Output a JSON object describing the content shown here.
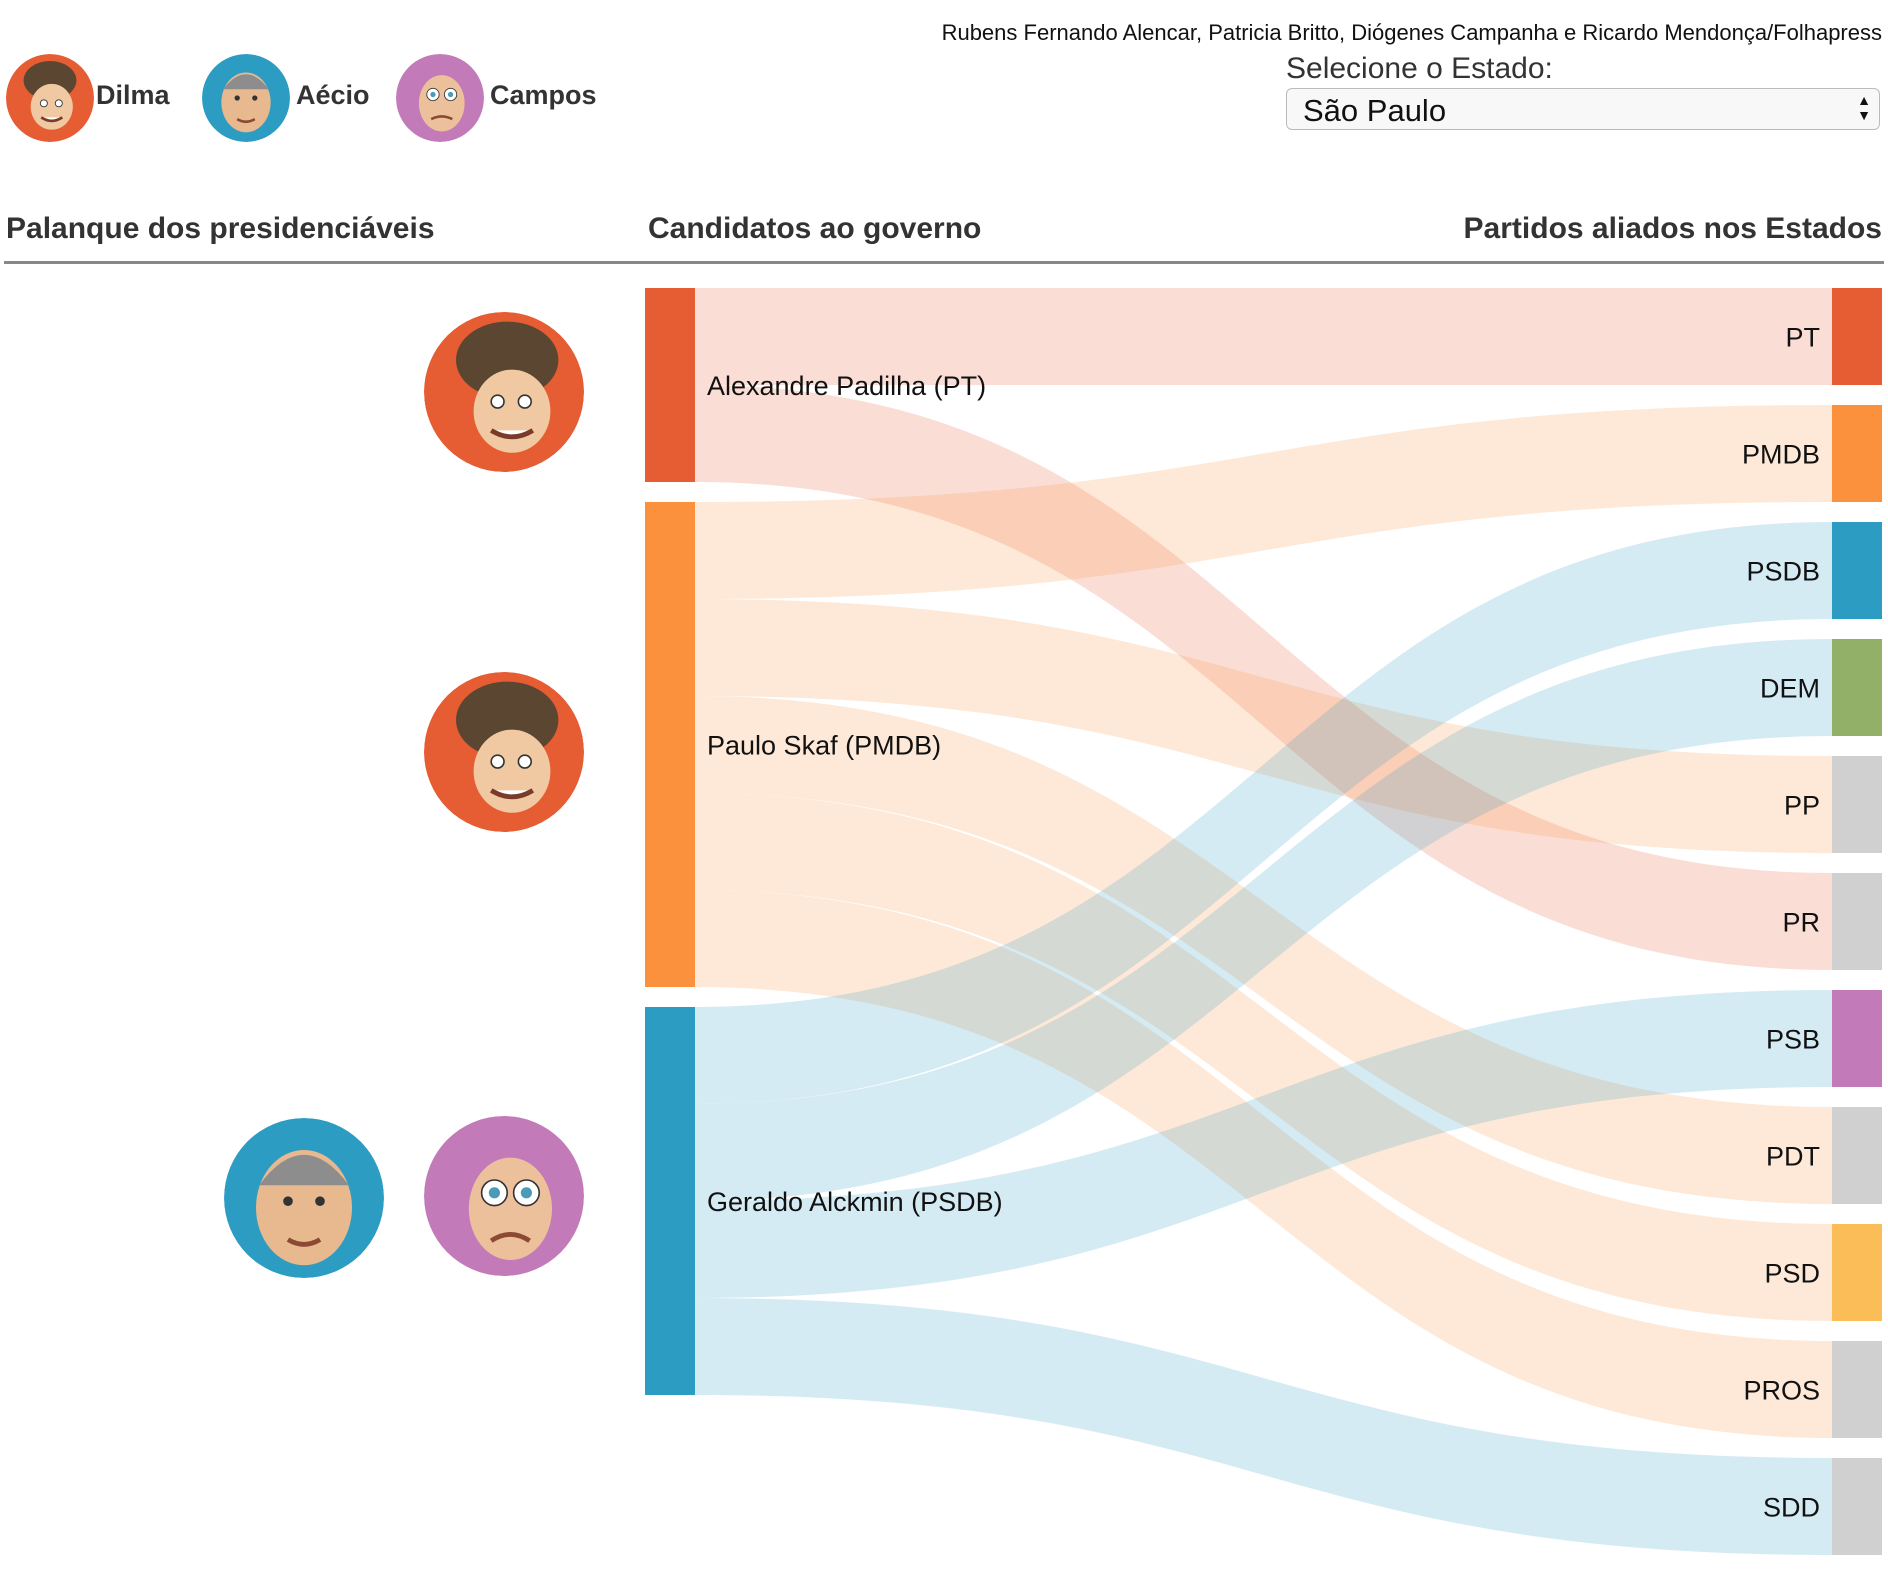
{
  "credits": "Rubens Fernando Alencar, Patricia Britto, Diógenes Campanha e Ricardo Mendonça/Folhapress",
  "legend": [
    {
      "name": "Dilma",
      "color": "#e65c33",
      "icon": "dilma-caricature-icon"
    },
    {
      "name": "Aécio",
      "color": "#2d9cc2",
      "icon": "aecio-caricature-icon"
    },
    {
      "name": "Campos",
      "color": "#c27ab8",
      "icon": "campos-caricature-icon"
    }
  ],
  "state_selector": {
    "label": "Selecione o Estado:",
    "value": "São Paulo"
  },
  "columns": {
    "presidential": "Palanque dos presidenciáveis",
    "governor": "Candidatos ao governo",
    "parties": "Partidos aliados nos Estados"
  },
  "chart_data": {
    "type": "sankey",
    "candidates": [
      {
        "label": "Alexandre Padilha (PT)",
        "color": "#e65c33",
        "supporters": [
          "Dilma"
        ],
        "parties": [
          "PT",
          "PR"
        ]
      },
      {
        "label": "Paulo Skaf (PMDB)",
        "color": "#fb913c",
        "supporters": [
          "Dilma"
        ],
        "parties": [
          "PMDB",
          "PP",
          "PDT",
          "PSD",
          "PROS"
        ]
      },
      {
        "label": "Geraldo Alckmin (PSDB)",
        "color": "#2d9cc2",
        "supporters": [
          "Aécio",
          "Campos"
        ],
        "parties": [
          "PSDB",
          "DEM",
          "PSB",
          "SDD"
        ]
      }
    ],
    "parties": [
      {
        "label": "PT",
        "color": "#e65c33"
      },
      {
        "label": "PMDB",
        "color": "#fb913c"
      },
      {
        "label": "PSDB",
        "color": "#2d9cc2"
      },
      {
        "label": "DEM",
        "color": "#93b068"
      },
      {
        "label": "PP",
        "color": "#d0d0d0"
      },
      {
        "label": "PR",
        "color": "#d0d0d0"
      },
      {
        "label": "PSB",
        "color": "#c27ab8"
      },
      {
        "label": "PDT",
        "color": "#d0d0d0"
      },
      {
        "label": "PSD",
        "color": "#fbbd57"
      },
      {
        "label": "PROS",
        "color": "#d0d0d0"
      },
      {
        "label": "SDD",
        "color": "#d0d0d0"
      }
    ],
    "links": [
      {
        "source": "Alexandre Padilha (PT)",
        "target": "PT",
        "value": 1
      },
      {
        "source": "Alexandre Padilha (PT)",
        "target": "PR",
        "value": 1
      },
      {
        "source": "Paulo Skaf (PMDB)",
        "target": "PMDB",
        "value": 1
      },
      {
        "source": "Paulo Skaf (PMDB)",
        "target": "PP",
        "value": 1
      },
      {
        "source": "Paulo Skaf (PMDB)",
        "target": "PDT",
        "value": 1
      },
      {
        "source": "Paulo Skaf (PMDB)",
        "target": "PSD",
        "value": 1
      },
      {
        "source": "Paulo Skaf (PMDB)",
        "target": "PROS",
        "value": 1
      },
      {
        "source": "Geraldo Alckmin (PSDB)",
        "target": "PSDB",
        "value": 1
      },
      {
        "source": "Geraldo Alckmin (PSDB)",
        "target": "DEM",
        "value": 1
      },
      {
        "source": "Geraldo Alckmin (PSDB)",
        "target": "PSB",
        "value": 1
      },
      {
        "source": "Geraldo Alckmin (PSDB)",
        "target": "SDD",
        "value": 1
      }
    ]
  }
}
